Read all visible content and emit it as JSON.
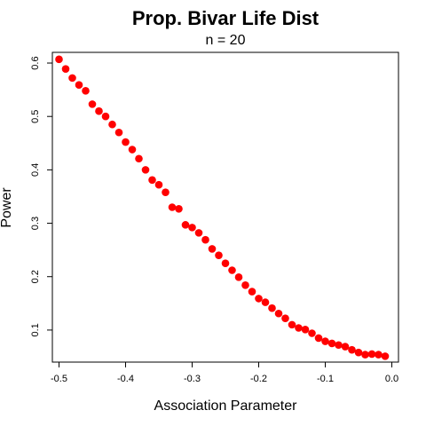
{
  "chart_data": {
    "type": "scatter",
    "title": "Prop. Bivar Life Dist",
    "subtitle": "n = 20",
    "xlabel": "Association Parameter",
    "ylabel": "Power",
    "xlim": [
      -0.51,
      0.01
    ],
    "ylim": [
      0.04,
      0.62
    ],
    "xticks": [
      -0.5,
      -0.4,
      -0.3,
      -0.2,
      -0.1,
      0.0
    ],
    "xtick_labels": [
      "-0.5",
      "-0.4",
      "-0.3",
      "-0.2",
      "-0.1",
      "0.0"
    ],
    "yticks": [
      0.1,
      0.2,
      0.3,
      0.4,
      0.5,
      0.6
    ],
    "ytick_labels": [
      "0.1",
      "0.2",
      "0.3",
      "0.4",
      "0.5",
      "0.6"
    ],
    "grid": false,
    "point_color": "#ff0000",
    "series": [
      {
        "x": [
          -0.5,
          -0.49,
          -0.48,
          -0.47,
          -0.46,
          -0.45,
          -0.44,
          -0.43,
          -0.42,
          -0.41,
          -0.4,
          -0.39,
          -0.38,
          -0.37,
          -0.36,
          -0.35,
          -0.34,
          -0.33,
          -0.32,
          -0.31,
          -0.3,
          -0.29,
          -0.28,
          -0.27,
          -0.26,
          -0.25,
          -0.24,
          -0.23,
          -0.22,
          -0.21,
          -0.2,
          -0.19,
          -0.18,
          -0.17,
          -0.16,
          -0.15,
          -0.14,
          -0.13,
          -0.12,
          -0.11,
          -0.1,
          -0.09,
          -0.08,
          -0.07,
          -0.06,
          -0.05,
          -0.04,
          -0.03,
          -0.02,
          -0.01
        ],
        "y": [
          0.607,
          0.589,
          0.572,
          0.559,
          0.548,
          0.523,
          0.51,
          0.5,
          0.485,
          0.47,
          0.452,
          0.438,
          0.421,
          0.4,
          0.381,
          0.372,
          0.358,
          0.33,
          0.327,
          0.297,
          0.292,
          0.282,
          0.269,
          0.252,
          0.24,
          0.225,
          0.212,
          0.199,
          0.184,
          0.172,
          0.159,
          0.152,
          0.141,
          0.131,
          0.122,
          0.11,
          0.104,
          0.101,
          0.094,
          0.085,
          0.079,
          0.075,
          0.072,
          0.069,
          0.063,
          0.058,
          0.054,
          0.055,
          0.054,
          0.051
        ]
      }
    ]
  }
}
